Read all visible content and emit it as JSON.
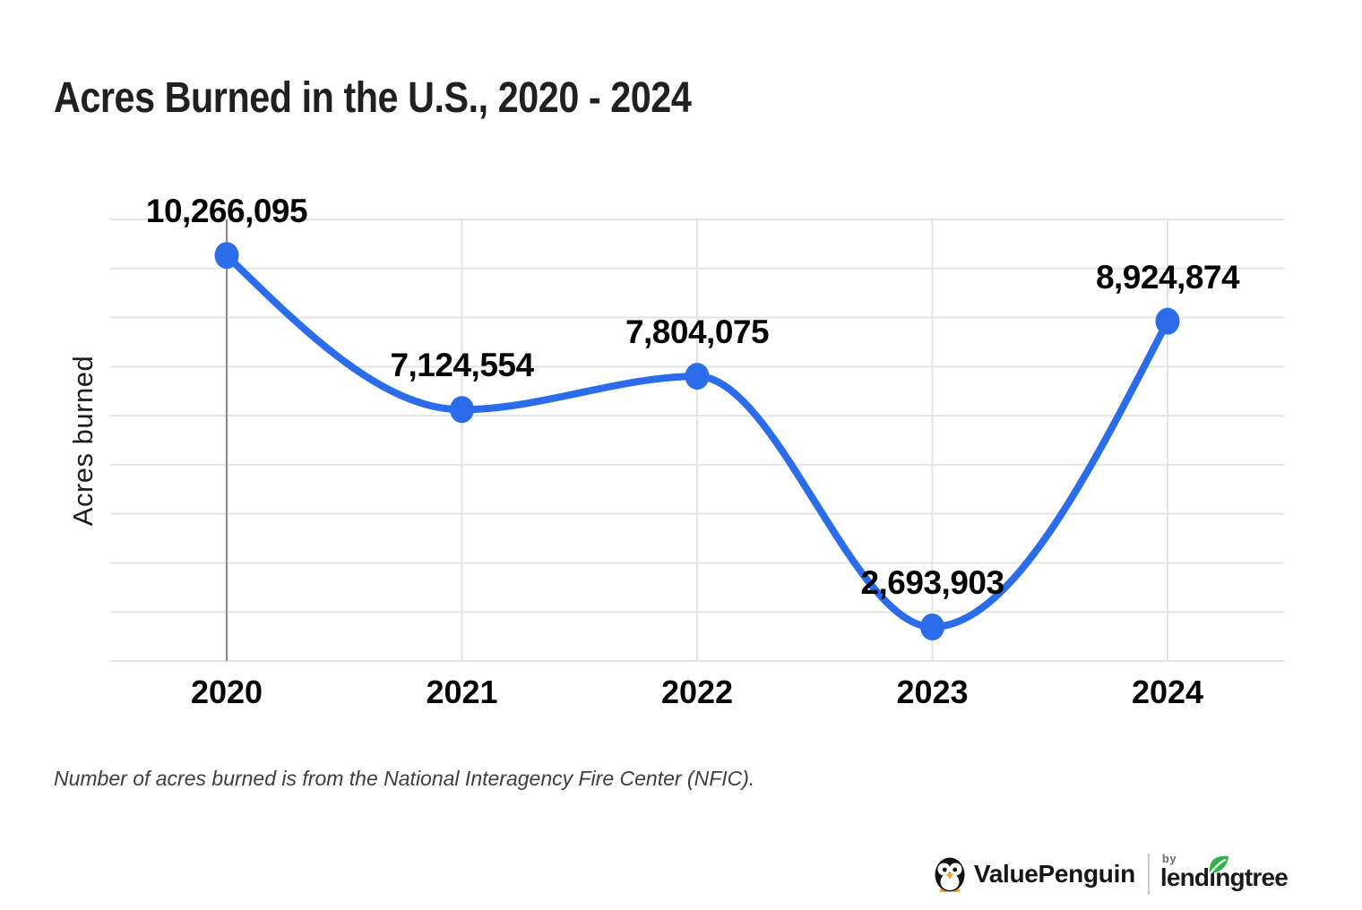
{
  "chart_data": {
    "type": "line",
    "title": "Acres Burned in the U.S., 2020 - 2024",
    "xlabel": "",
    "ylabel": "Acres burned",
    "categories": [
      "2020",
      "2021",
      "2022",
      "2023",
      "2024"
    ],
    "values": [
      10266095,
      7124554,
      7804075,
      2693903,
      8924874
    ],
    "labels": [
      "10,266,095",
      "7,124,554",
      "7,804,075",
      "2,693,903",
      "8,924,874"
    ],
    "ylim": [
      2000000,
      11000000
    ],
    "grid": "on",
    "gridline_step": 1000000,
    "legend": "none",
    "smooth": true,
    "marker": "circle"
  },
  "footnote": "Number of acres burned is from the National Interagency Fire Center (NFIC).",
  "branding": {
    "valuepenguin": "ValuePenguin",
    "by": "by",
    "lendingtree": "lendingtree",
    "lendingtree_display": "lendıngtree"
  },
  "colors": {
    "line": "#2a6ce9",
    "marker": "#2a6ce9",
    "grid": "#e4e4e4",
    "axis_line": "#8a8a8a",
    "title": "#202020",
    "data_label": "#050505",
    "footnote": "#3e3e3e",
    "leaf_green": "#2fb34c",
    "penguin_beak": "#f2a51f"
  }
}
